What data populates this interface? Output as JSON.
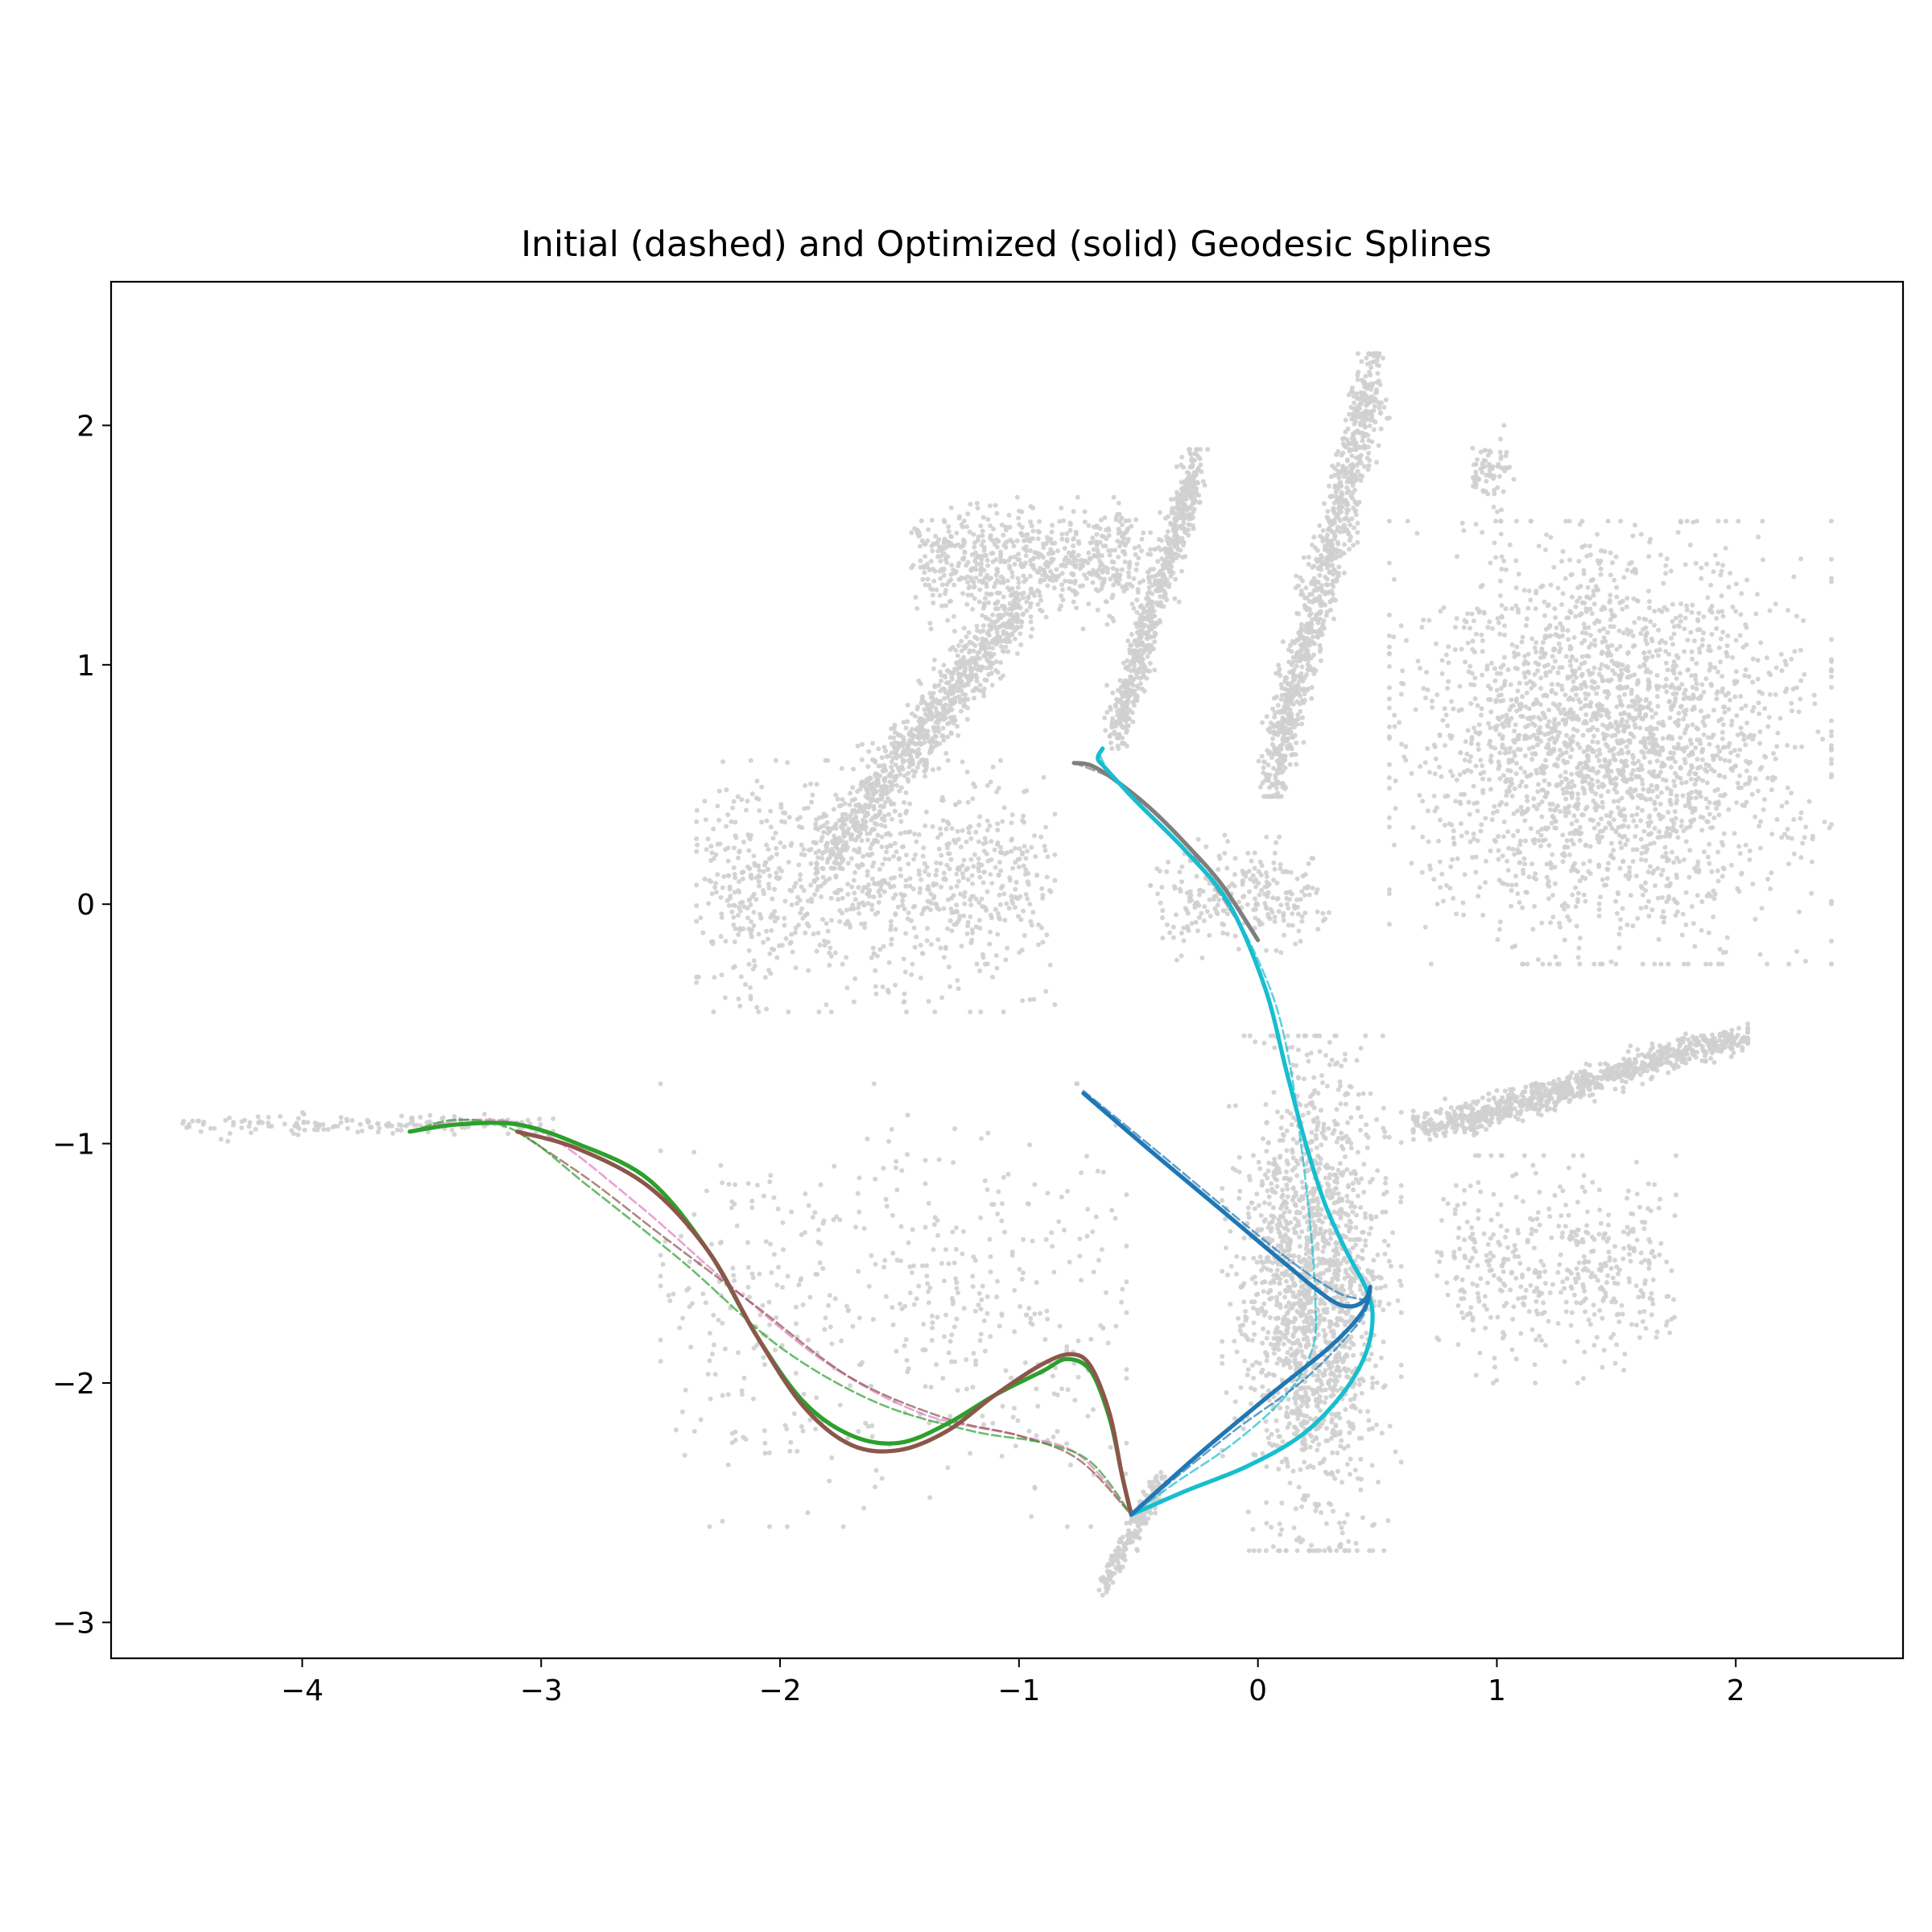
{
  "chart_data": {
    "type": "scatter",
    "title": "Initial (dashed) and Optimized (solid) Geodesic Splines",
    "xlabel": "",
    "ylabel": "",
    "xlim": [
      -4.8,
      2.7
    ],
    "ylim": [
      -3.15,
      2.6
    ],
    "xticks": [
      -4,
      -3,
      -2,
      -1,
      0,
      1,
      2
    ],
    "yticks": [
      -3,
      -2,
      -1,
      0,
      1,
      2
    ],
    "xtick_labels": [
      "−4",
      "−3",
      "−2",
      "−1",
      "0",
      "1",
      "2"
    ],
    "ytick_labels": [
      "−3",
      "−2",
      "−1",
      "0",
      "1",
      "2"
    ],
    "grid": false,
    "background_points": {
      "color": "#cfcfcf",
      "clusters": [
        {
          "name": "left-tail",
          "x": [
            -4.45,
            -3.0
          ],
          "y": [
            -0.96,
            -0.88
          ],
          "shape": "band",
          "count": 160
        },
        {
          "name": "upper-left-fan",
          "x": [
            -2.3,
            -0.9
          ],
          "y": [
            -0.4,
            0.55
          ],
          "shape": "band",
          "count": 900
        },
        {
          "name": "upper-left-arm",
          "x": [
            -1.8,
            -1.0
          ],
          "y": [
            0.2,
            1.25
          ],
          "shape": "band",
          "count": 900
        },
        {
          "name": "top-left-arc",
          "x": [
            -1.4,
            -0.5
          ],
          "y": [
            1.2,
            1.65
          ],
          "shape": "band",
          "count": 650
        },
        {
          "name": "top-spike",
          "x": [
            -0.6,
            -0.25
          ],
          "y": [
            0.7,
            1.85
          ],
          "shape": "band",
          "count": 650
        },
        {
          "name": "top-center-spike",
          "x": [
            0.05,
            0.5
          ],
          "y": [
            0.5,
            2.25
          ],
          "shape": "band",
          "count": 950
        },
        {
          "name": "small-top-right",
          "x": [
            0.9,
            1.05
          ],
          "y": [
            1.65,
            1.95
          ],
          "shape": "band",
          "count": 70
        },
        {
          "name": "right-fan",
          "x": [
            0.6,
            2.35
          ],
          "y": [
            -0.2,
            1.55
          ],
          "shape": "blob",
          "count": 2400
        },
        {
          "name": "lower-right-arm",
          "x": [
            0.7,
            2.0
          ],
          "y": [
            -0.95,
            -0.55
          ],
          "shape": "band",
          "count": 900
        },
        {
          "name": "lower-right-branches",
          "x": [
            0.8,
            1.7
          ],
          "y": [
            -1.95,
            -1.1
          ],
          "shape": "band",
          "count": 450
        },
        {
          "name": "center-lower-column",
          "x": [
            -0.1,
            0.55
          ],
          "y": [
            -2.65,
            -0.6
          ],
          "shape": "blob",
          "count": 1700
        },
        {
          "name": "center-small-streaks",
          "x": [
            -0.4,
            0.25
          ],
          "y": [
            -0.2,
            0.25
          ],
          "shape": "band",
          "count": 250
        },
        {
          "name": "mid-left-streaks",
          "x": [
            -2.45,
            -0.6
          ],
          "y": [
            -2.55,
            -0.8
          ],
          "shape": "band",
          "count": 500
        },
        {
          "name": "bottom-spike",
          "x": [
            -0.65,
            -0.4
          ],
          "y": [
            -2.85,
            -2.4
          ],
          "shape": "band",
          "count": 220
        }
      ]
    },
    "series": [
      {
        "style": "dashed",
        "color": "#e377c2",
        "x": [
          -3.55,
          -3.3,
          -3.0,
          -2.6,
          -2.2,
          -1.8,
          -1.4,
          -1.0,
          -0.75,
          -0.53
        ],
        "y": [
          -0.95,
          -0.9,
          -0.95,
          -1.25,
          -1.6,
          -1.92,
          -2.13,
          -2.22,
          -2.3,
          -2.55
        ]
      },
      {
        "style": "dashed",
        "color": "#8c564b",
        "x": [
          -3.1,
          -2.8,
          -2.5,
          -2.1,
          -1.7,
          -1.3,
          -1.0,
          -0.75,
          -0.53
        ],
        "y": [
          -0.95,
          -1.15,
          -1.38,
          -1.68,
          -1.98,
          -2.15,
          -2.22,
          -2.32,
          -2.55
        ]
      },
      {
        "style": "dashed",
        "color": "#2ca02c",
        "x": [
          -3.55,
          -3.35,
          -3.1,
          -2.8,
          -2.4,
          -2.0,
          -1.6,
          -1.2,
          -0.9,
          -0.7,
          -0.53
        ],
        "y": [
          -0.95,
          -0.9,
          -0.95,
          -1.18,
          -1.5,
          -1.85,
          -2.08,
          -2.2,
          -2.25,
          -2.33,
          -2.55
        ]
      },
      {
        "style": "dashed",
        "color": "#7f7f7f",
        "x": [
          -0.77,
          -0.6,
          -0.45,
          -0.3,
          -0.1
        ],
        "y": [
          0.59,
          0.52,
          0.4,
          0.25,
          -0.05
        ]
      },
      {
        "style": "dashed",
        "color": "#17becf",
        "x": [
          -0.66,
          -0.62,
          -0.5,
          -0.3,
          -0.12,
          0.05,
          0.13,
          0.18,
          0.22,
          0.24,
          0.23,
          0.12,
          -0.1,
          -0.35,
          -0.53
        ],
        "y": [
          0.62,
          0.55,
          0.42,
          0.22,
          0.0,
          -0.35,
          -0.65,
          -1.0,
          -1.35,
          -1.65,
          -1.85,
          -2.05,
          -2.25,
          -2.42,
          -2.55
        ]
      },
      {
        "style": "dashed",
        "color": "#1f77b4",
        "x": [
          -0.73,
          -0.4,
          -0.1,
          0.15,
          0.33,
          0.43,
          0.46,
          0.42,
          0.2,
          -0.1,
          -0.35,
          -0.53
        ],
        "y": [
          -0.78,
          -1.05,
          -1.3,
          -1.5,
          -1.62,
          -1.65,
          -1.65,
          -1.75,
          -1.98,
          -2.2,
          -2.4,
          -2.55
        ]
      },
      {
        "style": "solid",
        "color": "#2ca02c",
        "x": [
          -3.55,
          -3.35,
          -3.1,
          -2.85,
          -2.55,
          -2.3,
          -2.1,
          -1.9,
          -1.7,
          -1.5,
          -1.3,
          -1.1,
          -0.9,
          -0.8,
          -0.7,
          -0.62,
          -0.57,
          -0.53
        ],
        "y": [
          -0.95,
          -0.92,
          -0.92,
          -1.0,
          -1.15,
          -1.45,
          -1.8,
          -2.08,
          -2.22,
          -2.25,
          -2.17,
          -2.05,
          -1.95,
          -1.9,
          -1.95,
          -2.15,
          -2.38,
          -2.55
        ]
      },
      {
        "style": "solid",
        "color": "#8c564b",
        "x": [
          -3.1,
          -2.85,
          -2.55,
          -2.3,
          -2.1,
          -1.9,
          -1.7,
          -1.5,
          -1.3,
          -1.1,
          -0.9,
          -0.78,
          -0.7,
          -0.62,
          -0.57,
          -0.53
        ],
        "y": [
          -0.95,
          -1.02,
          -1.18,
          -1.45,
          -1.8,
          -2.1,
          -2.26,
          -2.28,
          -2.2,
          -2.05,
          -1.92,
          -1.88,
          -1.93,
          -2.13,
          -2.38,
          -2.55
        ]
      },
      {
        "style": "solid",
        "color": "#7f7f7f",
        "x": [
          -0.77,
          -0.7,
          -0.6,
          -0.45,
          -0.3,
          -0.15,
          0.0
        ],
        "y": [
          0.59,
          0.58,
          0.52,
          0.4,
          0.25,
          0.08,
          -0.15
        ]
      },
      {
        "style": "solid",
        "color": "#17becf",
        "x": [
          -0.65,
          -0.67,
          -0.64,
          -0.5,
          -0.3,
          -0.12,
          0.03,
          0.12,
          0.2,
          0.28,
          0.37,
          0.45,
          0.48,
          0.45,
          0.35,
          0.18,
          -0.05,
          -0.3,
          -0.53
        ],
        "y": [
          0.65,
          0.61,
          0.57,
          0.42,
          0.22,
          0.0,
          -0.35,
          -0.7,
          -1.0,
          -1.25,
          -1.45,
          -1.6,
          -1.72,
          -1.88,
          -2.05,
          -2.22,
          -2.35,
          -2.45,
          -2.55
        ]
      },
      {
        "style": "solid",
        "color": "#1f77b4",
        "x": [
          -0.73,
          -0.45,
          -0.15,
          0.1,
          0.3,
          0.39,
          0.45,
          0.47,
          0.44,
          0.3,
          0.05,
          -0.25,
          -0.53
        ],
        "y": [
          -0.79,
          -1.03,
          -1.28,
          -1.49,
          -1.65,
          -1.68,
          -1.65,
          -1.6,
          -1.7,
          -1.85,
          -2.05,
          -2.3,
          -2.55
        ]
      }
    ]
  }
}
